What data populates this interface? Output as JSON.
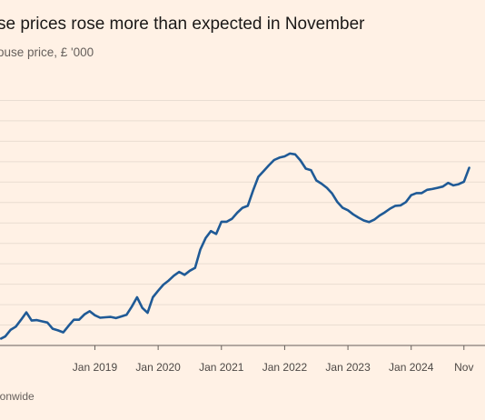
{
  "title": "se prices rose more than expected in November",
  "subtitle": "ouse price, £ '000",
  "source": "ionwide",
  "colors": {
    "background": "#fff1e5",
    "line": "#1f5a96",
    "grid": "#e9ddd2",
    "axis": "#66605c"
  },
  "chart_data": {
    "type": "line",
    "title": "se prices rose more than expected in November",
    "subtitle": "ouse price, £ '000",
    "x_tick_labels": [
      "Jan 2019",
      "Jan 2020",
      "Jan 2021",
      "Jan 2022",
      "Jan 2023",
      "Jan 2024",
      "Nov"
    ],
    "x_tick_months": [
      12,
      24,
      36,
      48,
      60,
      72,
      82
    ],
    "x_range_months": [
      -6,
      86
    ],
    "y_range": [
      210,
      275
    ],
    "y_gridlines": [
      215,
      220,
      225,
      230,
      235,
      240,
      245,
      250,
      255,
      260,
      265,
      270
    ],
    "series": [
      {
        "values": [
          [
            -5.8,
            211.7
          ],
          [
            -5,
            212.2
          ],
          [
            -4,
            213.8
          ],
          [
            -3,
            214.6
          ],
          [
            -2,
            216.3
          ],
          [
            -1,
            218.1
          ],
          [
            0,
            216.1
          ],
          [
            1,
            216.2
          ],
          [
            2,
            215.9
          ],
          [
            3,
            215.6
          ],
          [
            4,
            214.1
          ],
          [
            5,
            213.7
          ],
          [
            6,
            213.2
          ],
          [
            7,
            214.8
          ],
          [
            8,
            216.3
          ],
          [
            9,
            216.3
          ],
          [
            10,
            217.6
          ],
          [
            11,
            218.4
          ],
          [
            12,
            217.4
          ],
          [
            13,
            216.8
          ],
          [
            14,
            216.9
          ],
          [
            15,
            217.0
          ],
          [
            16,
            216.7
          ],
          [
            17,
            217.1
          ],
          [
            18,
            217.5
          ],
          [
            19,
            219.5
          ],
          [
            20,
            221.8
          ],
          [
            21,
            219.2
          ],
          [
            22,
            218.0
          ],
          [
            23,
            221.8
          ],
          [
            24,
            223.4
          ],
          [
            25,
            224.9
          ],
          [
            26,
            225.9
          ],
          [
            27,
            227.1
          ],
          [
            28,
            228.0
          ],
          [
            29,
            227.3
          ],
          [
            30,
            228.3
          ],
          [
            31,
            229.0
          ],
          [
            32,
            233.5
          ],
          [
            33,
            236.3
          ],
          [
            34,
            238.0
          ],
          [
            35,
            237.3
          ],
          [
            36,
            240.3
          ],
          [
            37,
            240.3
          ],
          [
            38,
            241.0
          ],
          [
            39,
            242.5
          ],
          [
            40,
            243.7
          ],
          [
            41,
            244.2
          ],
          [
            42,
            247.9
          ],
          [
            43,
            251.3
          ],
          [
            44,
            252.7
          ],
          [
            45,
            254.1
          ],
          [
            46,
            255.4
          ],
          [
            47,
            256.0
          ],
          [
            48,
            256.3
          ],
          [
            49,
            257.0
          ],
          [
            50,
            256.8
          ],
          [
            51,
            255.3
          ],
          [
            52,
            253.3
          ],
          [
            53,
            252.9
          ],
          [
            54,
            250.4
          ],
          [
            55,
            249.6
          ],
          [
            56,
            248.6
          ],
          [
            57,
            247.2
          ],
          [
            58,
            245.1
          ],
          [
            59,
            243.7
          ],
          [
            60,
            243.1
          ],
          [
            61,
            242.1
          ],
          [
            62,
            241.3
          ],
          [
            63,
            240.6
          ],
          [
            64,
            240.2
          ],
          [
            65,
            240.8
          ],
          [
            66,
            241.8
          ],
          [
            67,
            242.6
          ],
          [
            68,
            243.5
          ],
          [
            69,
            244.2
          ],
          [
            70,
            244.3
          ],
          [
            71,
            245.1
          ],
          [
            72,
            246.8
          ],
          [
            73,
            247.3
          ],
          [
            74,
            247.3
          ],
          [
            75,
            248.1
          ],
          [
            76,
            248.3
          ],
          [
            77,
            248.6
          ],
          [
            78,
            248.9
          ],
          [
            79,
            249.8
          ],
          [
            80,
            249.2
          ],
          [
            81,
            249.5
          ],
          [
            82,
            250.1
          ],
          [
            83,
            253.5
          ]
        ]
      }
    ]
  }
}
